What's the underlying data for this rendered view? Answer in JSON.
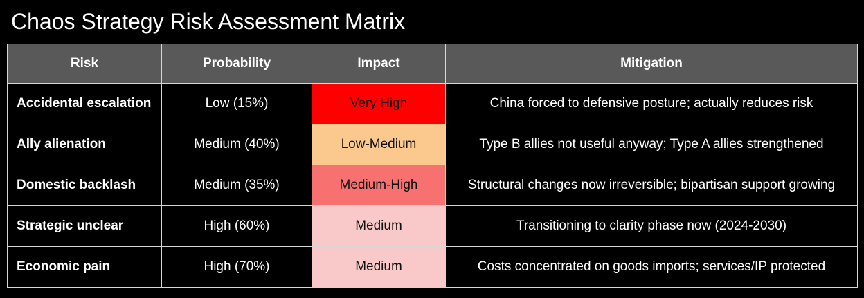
{
  "title": "Chaos Strategy Risk Assessment Matrix",
  "colors": {
    "background": "#000000",
    "header_bg": "#595959",
    "header_text": "#ffffff",
    "body_text": "#ffffff",
    "impact_text": "#111111",
    "grid": "#d6d6d6",
    "impact_very_high": "#fe0000",
    "impact_low_medium": "#fbc88d",
    "impact_medium_high": "#f77171",
    "impact_medium": "#f9c9c9"
  },
  "table": {
    "headers": [
      "Risk",
      "Probability",
      "Impact",
      "Mitigation"
    ],
    "rows": [
      {
        "risk": "Accidental escalation",
        "probability": "Low (15%)",
        "impact": "Very High",
        "impact_bg": "#fe0000",
        "mitigation": "China forced to defensive posture; actually reduces risk"
      },
      {
        "risk": "Ally alienation",
        "probability": "Medium (40%)",
        "impact": "Low-Medium",
        "impact_bg": "#fbc88d",
        "mitigation": "Type B allies not useful anyway; Type A allies strengthened"
      },
      {
        "risk": "Domestic backlash",
        "probability": "Medium (35%)",
        "impact": "Medium-High",
        "impact_bg": "#f77171",
        "mitigation": "Structural changes now irreversible; bipartisan support growing"
      },
      {
        "risk": "Strategic unclear",
        "probability": "High (60%)",
        "impact": "Medium",
        "impact_bg": "#f9c9c9",
        "mitigation": "Transitioning to clarity phase now (2024-2030)"
      },
      {
        "risk": "Economic pain",
        "probability": "High (70%)",
        "impact": "Medium",
        "impact_bg": "#f9c9c9",
        "mitigation": "Costs concentrated on goods imports; services/IP protected"
      }
    ]
  }
}
